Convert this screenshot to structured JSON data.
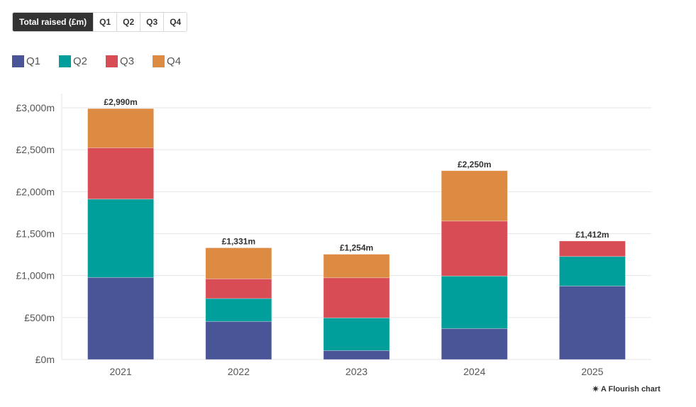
{
  "controls": {
    "tabs": [
      {
        "label": "Total raised (£m)",
        "active": true
      },
      {
        "label": "Q1",
        "active": false
      },
      {
        "label": "Q2",
        "active": false
      },
      {
        "label": "Q3",
        "active": false
      },
      {
        "label": "Q4",
        "active": false
      }
    ]
  },
  "legend": {
    "items": [
      {
        "label": "Q1",
        "color": "#4a5597"
      },
      {
        "label": "Q2",
        "color": "#009f9c"
      },
      {
        "label": "Q3",
        "color": "#d84d55"
      },
      {
        "label": "Q4",
        "color": "#dd8a42"
      }
    ]
  },
  "credit": {
    "icon": "flourish-logo-icon",
    "glyph": "✷",
    "label": "A Flourish chart"
  },
  "chart_data": {
    "type": "bar",
    "stacked": true,
    "title": "",
    "xlabel": "",
    "ylabel": "",
    "categories": [
      "2021",
      "2022",
      "2023",
      "2024",
      "2025"
    ],
    "series": [
      {
        "name": "Q1",
        "color": "#4a5597",
        "values": [
          978,
          454,
          107,
          369,
          876
        ]
      },
      {
        "name": "Q2",
        "color": "#009f9c",
        "values": [
          934,
          273,
          389,
          626,
          352
        ]
      },
      {
        "name": "Q3",
        "color": "#d84d55",
        "values": [
          611,
          234,
          478,
          655,
          184
        ]
      },
      {
        "name": "Q4",
        "color": "#dd8a42",
        "values": [
          467,
          370,
          280,
          600,
          0
        ]
      }
    ],
    "totals": [
      2990,
      1331,
      1254,
      2250,
      1412
    ],
    "total_labels": [
      "£2,990m",
      "£1,331m",
      "£1,254m",
      "£2,250m",
      "£1,412m"
    ],
    "ylim": [
      0,
      3000
    ],
    "yticks": [
      0,
      500,
      1000,
      1500,
      2000,
      2500,
      3000
    ],
    "ytick_labels": [
      "£0m",
      "£500m",
      "£1,000m",
      "£1,500m",
      "£2,000m",
      "£2,500m",
      "£3,000m"
    ],
    "grid": true,
    "legend_position": "top-left"
  }
}
